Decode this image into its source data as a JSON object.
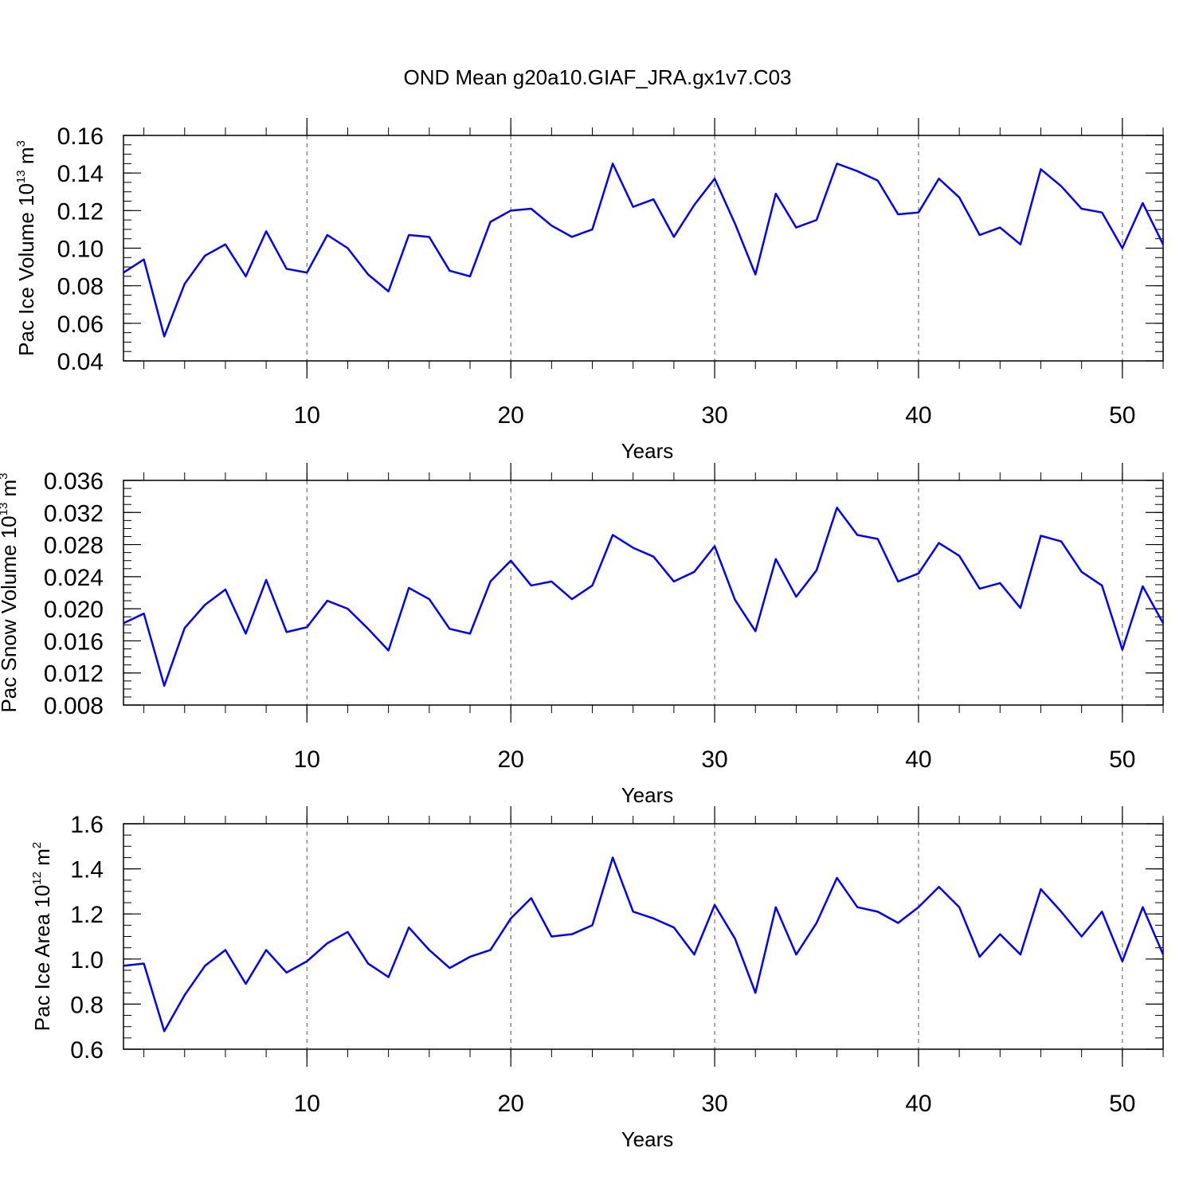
{
  "title": "OND Mean g20a10.GIAF_JRA.gx1v7.C03",
  "chart_data": [
    {
      "type": "line",
      "ylabel": {
        "prefix": "Pac Ice Volume 10",
        "sup1": "13",
        "mid": " m",
        "sup2": "3"
      },
      "xlabel": "Years",
      "xlim": [
        1,
        52
      ],
      "ylim": [
        0.04,
        0.16
      ],
      "yticks": [
        0.04,
        0.06,
        0.08,
        0.1,
        0.12,
        0.14,
        0.16
      ],
      "ytick_labels": [
        "0.04",
        "0.06",
        "0.08",
        "0.10",
        "0.12",
        "0.14",
        "0.16"
      ],
      "yminor": 0.005,
      "xticks": [
        10,
        20,
        30,
        40,
        50
      ],
      "xtick_labels": [
        "10",
        "20",
        "30",
        "40",
        "50"
      ],
      "grid_x": true,
      "line_color": "#0000ff",
      "x": [
        1,
        2,
        3,
        4,
        5,
        6,
        7,
        8,
        9,
        10,
        11,
        12,
        13,
        14,
        15,
        16,
        17,
        18,
        19,
        20,
        21,
        22,
        23,
        24,
        25,
        26,
        27,
        28,
        29,
        30,
        31,
        32,
        33,
        34,
        35,
        36,
        37,
        38,
        39,
        40,
        41,
        42,
        43,
        44,
        45,
        46,
        47,
        48,
        49,
        50,
        51,
        52
      ],
      "values": [
        0.087,
        0.094,
        0.053,
        0.081,
        0.096,
        0.102,
        0.085,
        0.109,
        0.089,
        0.087,
        0.107,
        0.1,
        0.086,
        0.077,
        0.107,
        0.106,
        0.088,
        0.085,
        0.114,
        0.12,
        0.121,
        0.112,
        0.106,
        0.11,
        0.145,
        0.122,
        0.126,
        0.106,
        0.123,
        0.137,
        0.113,
        0.086,
        0.129,
        0.111,
        0.115,
        0.145,
        0.141,
        0.136,
        0.118,
        0.119,
        0.137,
        0.127,
        0.107,
        0.111,
        0.102,
        0.142,
        0.133,
        0.121,
        0.119,
        0.1,
        0.124,
        0.102
      ]
    },
    {
      "type": "line",
      "ylabel": {
        "prefix": "Pac Snow Volume 10",
        "sup1": "13",
        "mid": " m",
        "sup2": "3"
      },
      "xlabel": "Years",
      "xlim": [
        1,
        52
      ],
      "ylim": [
        0.008,
        0.036
      ],
      "yticks": [
        0.008,
        0.012,
        0.016,
        0.02,
        0.024,
        0.028,
        0.032,
        0.036
      ],
      "ytick_labels": [
        "0.008",
        "0.012",
        "0.016",
        "0.020",
        "0.024",
        "0.028",
        "0.032",
        "0.036"
      ],
      "yminor": 0.001,
      "xticks": [
        10,
        20,
        30,
        40,
        50
      ],
      "xtick_labels": [
        "10",
        "20",
        "30",
        "40",
        "50"
      ],
      "grid_x": true,
      "line_color": "#0000ff",
      "x": [
        1,
        2,
        3,
        4,
        5,
        6,
        7,
        8,
        9,
        10,
        11,
        12,
        13,
        14,
        15,
        16,
        17,
        18,
        19,
        20,
        21,
        22,
        23,
        24,
        25,
        26,
        27,
        28,
        29,
        30,
        31,
        32,
        33,
        34,
        35,
        36,
        37,
        38,
        39,
        40,
        41,
        42,
        43,
        44,
        45,
        46,
        47,
        48,
        49,
        50,
        51,
        52
      ],
      "values": [
        0.0182,
        0.0194,
        0.0104,
        0.0176,
        0.0205,
        0.0224,
        0.0169,
        0.0236,
        0.0171,
        0.0177,
        0.021,
        0.02,
        0.0175,
        0.0148,
        0.0226,
        0.0212,
        0.0175,
        0.0169,
        0.0234,
        0.026,
        0.0229,
        0.0234,
        0.0212,
        0.0229,
        0.0292,
        0.0276,
        0.0265,
        0.0234,
        0.0246,
        0.0278,
        0.0211,
        0.0172,
        0.0262,
        0.0215,
        0.0248,
        0.0326,
        0.0292,
        0.0287,
        0.0234,
        0.0244,
        0.0282,
        0.0266,
        0.0225,
        0.0232,
        0.0201,
        0.0291,
        0.0284,
        0.0246,
        0.0229,
        0.0149,
        0.0228,
        0.0182
      ]
    },
    {
      "type": "line",
      "ylabel": {
        "prefix": "Pac Ice Area 10",
        "sup1": "12",
        "mid": " m",
        "sup2": "2"
      },
      "xlabel": "Years",
      "xlim": [
        1,
        52
      ],
      "ylim": [
        0.6,
        1.6
      ],
      "yticks": [
        0.6,
        0.8,
        1.0,
        1.2,
        1.4,
        1.6
      ],
      "ytick_labels": [
        "0.6",
        "0.8",
        "1.0",
        "1.2",
        "1.4",
        "1.6"
      ],
      "yminor": 0.05,
      "xticks": [
        10,
        20,
        30,
        40,
        50
      ],
      "xtick_labels": [
        "10",
        "20",
        "30",
        "40",
        "50"
      ],
      "grid_x": true,
      "line_color": "#0000ff",
      "x": [
        1,
        2,
        3,
        4,
        5,
        6,
        7,
        8,
        9,
        10,
        11,
        12,
        13,
        14,
        15,
        16,
        17,
        18,
        19,
        20,
        21,
        22,
        23,
        24,
        25,
        26,
        27,
        28,
        29,
        30,
        31,
        32,
        33,
        34,
        35,
        36,
        37,
        38,
        39,
        40,
        41,
        42,
        43,
        44,
        45,
        46,
        47,
        48,
        49,
        50,
        51,
        52
      ],
      "values": [
        0.97,
        0.98,
        0.68,
        0.84,
        0.97,
        1.04,
        0.89,
        1.04,
        0.94,
        0.99,
        1.07,
        1.12,
        0.98,
        0.92,
        1.14,
        1.04,
        0.96,
        1.01,
        1.04,
        1.18,
        1.27,
        1.1,
        1.11,
        1.15,
        1.45,
        1.21,
        1.18,
        1.14,
        1.02,
        1.24,
        1.09,
        0.85,
        1.23,
        1.02,
        1.16,
        1.36,
        1.23,
        1.21,
        1.16,
        1.23,
        1.32,
        1.23,
        1.01,
        1.11,
        1.02,
        1.31,
        1.21,
        1.1,
        1.21,
        0.99,
        1.23,
        1.02
      ]
    }
  ]
}
